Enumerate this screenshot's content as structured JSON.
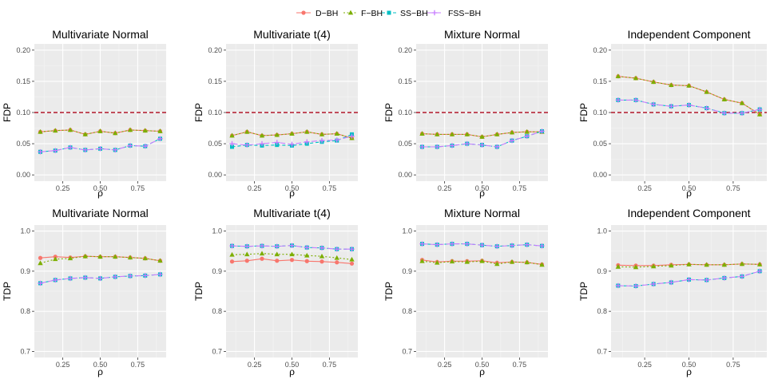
{
  "colors": {
    "panel_bg": "#ebebeb",
    "grid_major": "#ffffff",
    "axis_text": "#4d4d4d",
    "threshold": "#b2182b",
    "D-BH": "#f8766d",
    "F-BH": "#7cae00",
    "SS-BH": "#00bfc4",
    "FSS-BH": "#c77cff"
  },
  "legend": {
    "position": "top",
    "entries": [
      {
        "key": "D-BH",
        "label": "D−BH",
        "marker": "circle",
        "dash": "solid"
      },
      {
        "key": "F-BH",
        "label": "F−BH",
        "marker": "triangle",
        "dash": "dotted"
      },
      {
        "key": "SS-BH",
        "label": "SS−BH",
        "marker": "square",
        "dash": "dashed"
      },
      {
        "key": "FSS-BH",
        "label": "FSS−BH",
        "marker": "plus",
        "dash": "longdash"
      }
    ]
  },
  "chart_data": [
    {
      "type": "line",
      "title": "Multivariate Normal",
      "xlabel": "ρ",
      "ylabel": "FDP",
      "xlim": [
        0.06,
        0.94
      ],
      "ylim": [
        -0.01,
        0.21
      ],
      "xticks": [
        0.25,
        0.5,
        0.75
      ],
      "xtick_labels": [
        "0.25",
        "0.50",
        "0.75"
      ],
      "yticks": [
        0,
        0.05,
        0.1,
        0.15,
        0.2
      ],
      "ytick_labels": [
        "0.00",
        "0.05",
        "0.10",
        "0.15",
        "0.20"
      ],
      "threshold": 0.1,
      "x": [
        0.1,
        0.2,
        0.3,
        0.4,
        0.5,
        0.6,
        0.7,
        0.8,
        0.9
      ],
      "series": [
        {
          "key": "D-BH",
          "values": [
            0.069,
            0.071,
            0.072,
            0.065,
            0.07,
            0.067,
            0.072,
            0.071,
            0.07
          ]
        },
        {
          "key": "F-BH",
          "values": [
            0.069,
            0.071,
            0.072,
            0.065,
            0.07,
            0.067,
            0.072,
            0.071,
            0.07
          ]
        },
        {
          "key": "SS-BH",
          "values": [
            0.037,
            0.039,
            0.044,
            0.04,
            0.042,
            0.04,
            0.047,
            0.046,
            0.058
          ]
        },
        {
          "key": "FSS-BH",
          "values": [
            0.037,
            0.039,
            0.044,
            0.04,
            0.042,
            0.04,
            0.047,
            0.046,
            0.058
          ]
        }
      ]
    },
    {
      "type": "line",
      "title": "Multivariate t(4)",
      "xlabel": "ρ",
      "ylabel": "FDP",
      "xlim": [
        0.06,
        0.94
      ],
      "ylim": [
        -0.01,
        0.21
      ],
      "xticks": [
        0.25,
        0.5,
        0.75
      ],
      "xtick_labels": [
        "0.25",
        "0.50",
        "0.75"
      ],
      "yticks": [
        0,
        0.05,
        0.1,
        0.15,
        0.2
      ],
      "ytick_labels": [
        "0.00",
        "0.05",
        "0.10",
        "0.15",
        "0.20"
      ],
      "threshold": 0.1,
      "x": [
        0.1,
        0.2,
        0.3,
        0.4,
        0.5,
        0.6,
        0.7,
        0.8,
        0.9
      ],
      "series": [
        {
          "key": "D-BH",
          "values": [
            0.063,
            0.069,
            0.063,
            0.064,
            0.066,
            0.069,
            0.065,
            0.066,
            0.059
          ]
        },
        {
          "key": "F-BH",
          "values": [
            0.063,
            0.069,
            0.063,
            0.064,
            0.066,
            0.069,
            0.065,
            0.066,
            0.059
          ]
        },
        {
          "key": "SS-BH",
          "values": [
            0.045,
            0.048,
            0.047,
            0.048,
            0.047,
            0.05,
            0.053,
            0.055,
            0.065
          ]
        },
        {
          "key": "FSS-BH",
          "values": [
            0.05,
            0.048,
            0.05,
            0.052,
            0.049,
            0.053,
            0.055,
            0.056,
            0.062
          ]
        }
      ]
    },
    {
      "type": "line",
      "title": "Mixture Normal",
      "xlabel": "ρ",
      "ylabel": "FDP",
      "xlim": [
        0.06,
        0.94
      ],
      "ylim": [
        -0.01,
        0.21
      ],
      "xticks": [
        0.25,
        0.5,
        0.75
      ],
      "xtick_labels": [
        "0.25",
        "0.50",
        "0.75"
      ],
      "yticks": [
        0,
        0.05,
        0.1,
        0.15,
        0.2
      ],
      "ytick_labels": [
        "0.00",
        "0.05",
        "0.10",
        "0.15",
        "0.20"
      ],
      "threshold": 0.1,
      "x": [
        0.1,
        0.2,
        0.3,
        0.4,
        0.5,
        0.6,
        0.7,
        0.8,
        0.9
      ],
      "series": [
        {
          "key": "D-BH",
          "values": [
            0.066,
            0.065,
            0.065,
            0.065,
            0.061,
            0.065,
            0.068,
            0.069,
            0.069
          ]
        },
        {
          "key": "F-BH",
          "values": [
            0.066,
            0.065,
            0.065,
            0.065,
            0.061,
            0.065,
            0.068,
            0.069,
            0.069
          ]
        },
        {
          "key": "SS-BH",
          "values": [
            0.045,
            0.045,
            0.047,
            0.05,
            0.048,
            0.045,
            0.055,
            0.062,
            0.07
          ]
        },
        {
          "key": "FSS-BH",
          "values": [
            0.045,
            0.045,
            0.047,
            0.05,
            0.048,
            0.045,
            0.055,
            0.062,
            0.07
          ]
        }
      ]
    },
    {
      "type": "line",
      "title": "Independent Component",
      "xlabel": "ρ",
      "ylabel": "FDP",
      "xlim": [
        0.06,
        0.94
      ],
      "ylim": [
        -0.01,
        0.21
      ],
      "xticks": [
        0.25,
        0.5,
        0.75
      ],
      "xtick_labels": [
        "0.25",
        "0.50",
        "0.75"
      ],
      "yticks": [
        0,
        0.05,
        0.1,
        0.15,
        0.2
      ],
      "ytick_labels": [
        "0.00",
        "0.05",
        "0.10",
        "0.15",
        "0.20"
      ],
      "threshold": 0.1,
      "x": [
        0.1,
        0.2,
        0.3,
        0.4,
        0.5,
        0.6,
        0.7,
        0.8,
        0.9
      ],
      "series": [
        {
          "key": "D-BH",
          "values": [
            0.158,
            0.155,
            0.149,
            0.144,
            0.143,
            0.133,
            0.121,
            0.115,
            0.097
          ]
        },
        {
          "key": "F-BH",
          "values": [
            0.158,
            0.155,
            0.149,
            0.144,
            0.143,
            0.133,
            0.121,
            0.115,
            0.097
          ]
        },
        {
          "key": "SS-BH",
          "values": [
            0.12,
            0.12,
            0.113,
            0.11,
            0.112,
            0.107,
            0.099,
            0.099,
            0.105
          ]
        },
        {
          "key": "FSS-BH",
          "values": [
            0.12,
            0.12,
            0.113,
            0.11,
            0.112,
            0.107,
            0.099,
            0.099,
            0.105
          ]
        }
      ]
    },
    {
      "type": "line",
      "title": "Multivariate Normal",
      "xlabel": "ρ",
      "ylabel": "TDP",
      "xlim": [
        0.06,
        0.94
      ],
      "ylim": [
        0.685,
        1.015
      ],
      "xticks": [
        0.25,
        0.5,
        0.75
      ],
      "xtick_labels": [
        "0.25",
        "0.50",
        "0.75"
      ],
      "yticks": [
        0.7,
        0.8,
        0.9,
        1.0
      ],
      "ytick_labels": [
        "0.7",
        "0.8",
        "0.9",
        "1.0"
      ],
      "x": [
        0.1,
        0.2,
        0.3,
        0.4,
        0.5,
        0.6,
        0.7,
        0.8,
        0.9
      ],
      "series": [
        {
          "key": "D-BH",
          "values": [
            0.933,
            0.936,
            0.934,
            0.937,
            0.936,
            0.936,
            0.934,
            0.932,
            0.926
          ]
        },
        {
          "key": "F-BH",
          "values": [
            0.92,
            0.93,
            0.932,
            0.937,
            0.936,
            0.936,
            0.934,
            0.932,
            0.926
          ]
        },
        {
          "key": "SS-BH",
          "values": [
            0.87,
            0.878,
            0.882,
            0.884,
            0.882,
            0.886,
            0.888,
            0.889,
            0.892
          ]
        },
        {
          "key": "FSS-BH",
          "values": [
            0.87,
            0.878,
            0.882,
            0.884,
            0.882,
            0.886,
            0.888,
            0.889,
            0.892
          ]
        }
      ]
    },
    {
      "type": "line",
      "title": "Multivariate t(4)",
      "xlabel": "ρ",
      "ylabel": "TDP",
      "xlim": [
        0.06,
        0.94
      ],
      "ylim": [
        0.685,
        1.015
      ],
      "xticks": [
        0.25,
        0.5,
        0.75
      ],
      "xtick_labels": [
        "0.25",
        "0.50",
        "0.75"
      ],
      "yticks": [
        0.7,
        0.8,
        0.9,
        1.0
      ],
      "ytick_labels": [
        "0.7",
        "0.8",
        "0.9",
        "1.0"
      ],
      "x": [
        0.1,
        0.2,
        0.3,
        0.4,
        0.5,
        0.6,
        0.7,
        0.8,
        0.9
      ],
      "series": [
        {
          "key": "D-BH",
          "values": [
            0.924,
            0.926,
            0.931,
            0.926,
            0.928,
            0.925,
            0.924,
            0.922,
            0.919
          ]
        },
        {
          "key": "F-BH",
          "values": [
            0.941,
            0.942,
            0.944,
            0.942,
            0.942,
            0.939,
            0.937,
            0.933,
            0.929
          ]
        },
        {
          "key": "SS-BH",
          "values": [
            0.963,
            0.962,
            0.963,
            0.962,
            0.964,
            0.959,
            0.958,
            0.955,
            0.955
          ]
        },
        {
          "key": "FSS-BH",
          "values": [
            0.963,
            0.962,
            0.963,
            0.962,
            0.964,
            0.959,
            0.958,
            0.955,
            0.955
          ]
        }
      ]
    },
    {
      "type": "line",
      "title": "Mixture Normal",
      "xlabel": "ρ",
      "ylabel": "TDP",
      "xlim": [
        0.06,
        0.94
      ],
      "ylim": [
        0.685,
        1.015
      ],
      "xticks": [
        0.25,
        0.5,
        0.75
      ],
      "xtick_labels": [
        "0.25",
        "0.50",
        "0.75"
      ],
      "yticks": [
        0.7,
        0.8,
        0.9,
        1.0
      ],
      "ytick_labels": [
        "0.7",
        "0.8",
        "0.9",
        "1.0"
      ],
      "x": [
        0.1,
        0.2,
        0.3,
        0.4,
        0.5,
        0.6,
        0.7,
        0.8,
        0.9
      ],
      "series": [
        {
          "key": "D-BH",
          "values": [
            0.928,
            0.923,
            0.925,
            0.925,
            0.926,
            0.921,
            0.923,
            0.922,
            0.917
          ]
        },
        {
          "key": "F-BH",
          "values": [
            0.925,
            0.921,
            0.924,
            0.923,
            0.925,
            0.918,
            0.923,
            0.922,
            0.916
          ]
        },
        {
          "key": "SS-BH",
          "values": [
            0.968,
            0.966,
            0.968,
            0.968,
            0.965,
            0.962,
            0.964,
            0.966,
            0.963
          ]
        },
        {
          "key": "FSS-BH",
          "values": [
            0.968,
            0.966,
            0.968,
            0.968,
            0.965,
            0.962,
            0.964,
            0.966,
            0.963
          ]
        }
      ]
    },
    {
      "type": "line",
      "title": "Independent Component",
      "xlabel": "ρ",
      "ylabel": "TDP",
      "xlim": [
        0.06,
        0.94
      ],
      "ylim": [
        0.685,
        1.015
      ],
      "xticks": [
        0.25,
        0.5,
        0.75
      ],
      "xtick_labels": [
        "0.25",
        "0.50",
        "0.75"
      ],
      "yticks": [
        0.7,
        0.8,
        0.9,
        1.0
      ],
      "ytick_labels": [
        "0.7",
        "0.8",
        "0.9",
        "1.0"
      ],
      "x": [
        0.1,
        0.2,
        0.3,
        0.4,
        0.5,
        0.6,
        0.7,
        0.8,
        0.9
      ],
      "series": [
        {
          "key": "D-BH",
          "values": [
            0.915,
            0.914,
            0.914,
            0.916,
            0.917,
            0.916,
            0.916,
            0.918,
            0.917
          ]
        },
        {
          "key": "F-BH",
          "values": [
            0.911,
            0.91,
            0.912,
            0.914,
            0.917,
            0.916,
            0.916,
            0.918,
            0.917
          ]
        },
        {
          "key": "SS-BH",
          "values": [
            0.864,
            0.863,
            0.868,
            0.872,
            0.879,
            0.878,
            0.883,
            0.887,
            0.9
          ]
        },
        {
          "key": "FSS-BH",
          "values": [
            0.864,
            0.863,
            0.868,
            0.872,
            0.879,
            0.878,
            0.883,
            0.887,
            0.9
          ]
        }
      ]
    }
  ]
}
